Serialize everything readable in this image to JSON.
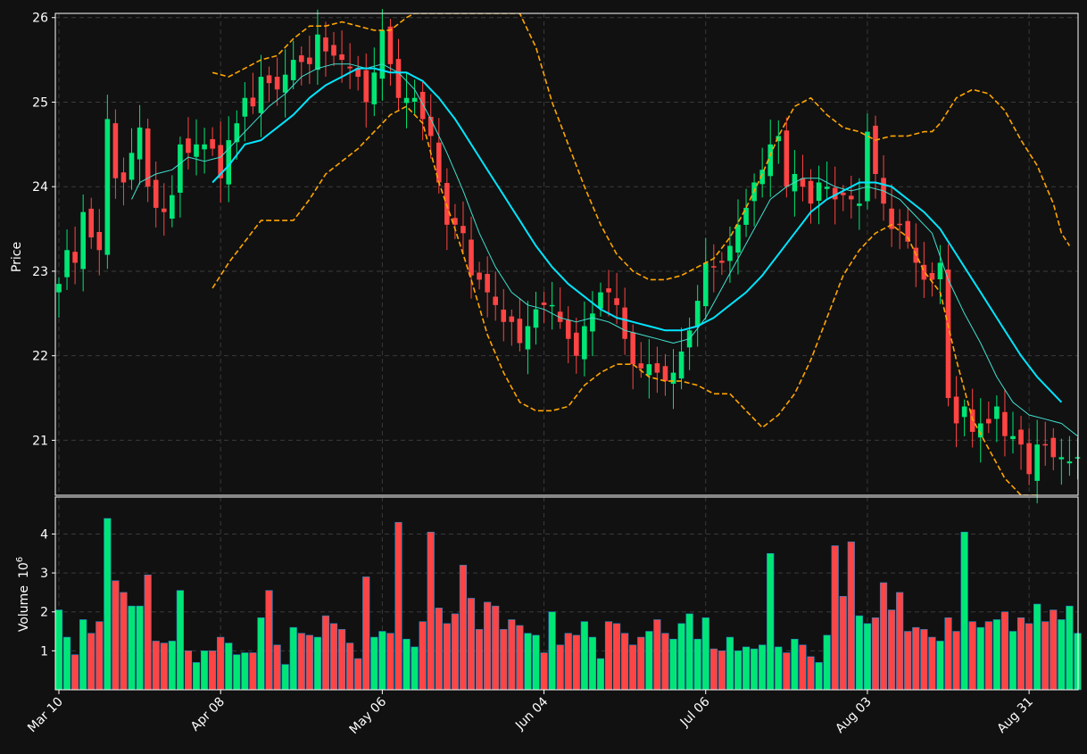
{
  "chart_data": {
    "type": "candlestick",
    "title": "",
    "colors": {
      "background": "#111111",
      "up": "#00e676",
      "down": "#ff4444",
      "ma_fast": "#40e0d0",
      "ma_slow": "#00e5ff",
      "bollinger": "#ffa500",
      "grid": "#3a3a3a",
      "frame": "#ffffff"
    },
    "price_panel": {
      "ylabel": "Price",
      "ylim": [
        20.35,
        26.05
      ],
      "yticks": [
        21,
        22,
        23,
        24,
        25,
        26
      ]
    },
    "volume_panel": {
      "ylabel": "Volume",
      "unit_label": "10",
      "unit_exponent": "6",
      "ylim": [
        0,
        4.95
      ],
      "yticks": [
        1,
        2,
        3,
        4
      ]
    },
    "x_axis": {
      "n_sessions": 127,
      "tick_labels": [
        {
          "label": "Mar 10",
          "index": 0
        },
        {
          "label": "Apr 08",
          "index": 20
        },
        {
          "label": "May 06",
          "index": 40
        },
        {
          "label": "Jun 04",
          "index": 60
        },
        {
          "label": "Jul 06",
          "index": 80
        },
        {
          "label": "Aug 03",
          "index": 100
        },
        {
          "label": "Aug 31",
          "index": 120
        }
      ]
    },
    "ohlc_anchors": [
      [
        0,
        22.85
      ],
      [
        1,
        23.25
      ],
      [
        2,
        23.1
      ],
      [
        3,
        23.7
      ],
      [
        4,
        23.4
      ],
      [
        5,
        23.25
      ],
      [
        6,
        24.8
      ],
      [
        7,
        24.1
      ],
      [
        8,
        24.05
      ],
      [
        9,
        24.4
      ],
      [
        10,
        24.7
      ],
      [
        11,
        24.0
      ],
      [
        12,
        23.75
      ],
      [
        13,
        23.7
      ],
      [
        14,
        23.9
      ],
      [
        15,
        24.5
      ],
      [
        16,
        24.4
      ],
      [
        17,
        24.5
      ],
      [
        18,
        24.5
      ],
      [
        19,
        24.45
      ],
      [
        20,
        24.1
      ],
      [
        21,
        24.55
      ],
      [
        22,
        24.75
      ],
      [
        23,
        25.05
      ],
      [
        24,
        24.95
      ],
      [
        25,
        25.3
      ],
      [
        27,
        25.15
      ],
      [
        29,
        25.5
      ],
      [
        31,
        25.45
      ],
      [
        32,
        25.8
      ],
      [
        33,
        25.6
      ],
      [
        35,
        25.5
      ],
      [
        37,
        25.3
      ],
      [
        38,
        25.0
      ],
      [
        39,
        25.35
      ],
      [
        40,
        25.85
      ],
      [
        41,
        25.45
      ],
      [
        42,
        25.05
      ],
      [
        44,
        25.05
      ],
      [
        45,
        24.8
      ],
      [
        46,
        24.6
      ],
      [
        47,
        24.05
      ],
      [
        48,
        23.55
      ],
      [
        49,
        23.55
      ],
      [
        50,
        23.45
      ],
      [
        51,
        22.95
      ],
      [
        52,
        22.9
      ],
      [
        53,
        22.75
      ],
      [
        54,
        22.6
      ],
      [
        55,
        22.4
      ],
      [
        56,
        22.4
      ],
      [
        57,
        22.15
      ],
      [
        58,
        22.35
      ],
      [
        59,
        22.55
      ],
      [
        60,
        22.6
      ],
      [
        61,
        22.6
      ],
      [
        62,
        22.4
      ],
      [
        63,
        22.2
      ],
      [
        64,
        22.0
      ],
      [
        65,
        22.35
      ],
      [
        66,
        22.5
      ],
      [
        67,
        22.75
      ],
      [
        68,
        22.75
      ],
      [
        69,
        22.6
      ],
      [
        70,
        22.2
      ],
      [
        71,
        21.9
      ],
      [
        72,
        21.85
      ],
      [
        73,
        21.9
      ],
      [
        74,
        21.8
      ],
      [
        75,
        21.7
      ],
      [
        76,
        21.8
      ],
      [
        77,
        22.05
      ],
      [
        78,
        22.3
      ],
      [
        79,
        22.65
      ],
      [
        80,
        23.1
      ],
      [
        81,
        23.05
      ],
      [
        82,
        23.1
      ],
      [
        83,
        23.3
      ],
      [
        84,
        23.55
      ],
      [
        85,
        23.75
      ],
      [
        86,
        24.05
      ],
      [
        87,
        24.2
      ],
      [
        88,
        24.5
      ],
      [
        89,
        24.6
      ],
      [
        90,
        24.0
      ],
      [
        91,
        24.15
      ],
      [
        92,
        24.0
      ],
      [
        93,
        23.8
      ],
      [
        94,
        24.05
      ],
      [
        95,
        24.0
      ],
      [
        96,
        23.85
      ],
      [
        97,
        23.9
      ],
      [
        98,
        23.85
      ],
      [
        99,
        23.8
      ],
      [
        100,
        24.65
      ],
      [
        101,
        24.15
      ],
      [
        102,
        23.8
      ],
      [
        103,
        23.5
      ],
      [
        104,
        23.55
      ],
      [
        105,
        23.35
      ],
      [
        106,
        23.1
      ],
      [
        107,
        22.9
      ],
      [
        108,
        22.9
      ],
      [
        109,
        23.1
      ],
      [
        110,
        21.5
      ],
      [
        111,
        21.2
      ],
      [
        112,
        21.4
      ],
      [
        113,
        21.1
      ],
      [
        114,
        21.2
      ],
      [
        115,
        21.2
      ],
      [
        116,
        21.4
      ],
      [
        117,
        21.05
      ],
      [
        118,
        21.05
      ],
      [
        119,
        20.95
      ],
      [
        120,
        20.6
      ],
      [
        121,
        20.95
      ],
      [
        122,
        20.95
      ],
      [
        123,
        20.8
      ],
      [
        124,
        20.8
      ],
      [
        125,
        20.75
      ],
      [
        126,
        20.8
      ]
    ],
    "ma_fast": [
      [
        9,
        23.85
      ],
      [
        10,
        24.05
      ],
      [
        12,
        24.15
      ],
      [
        14,
        24.2
      ],
      [
        16,
        24.35
      ],
      [
        18,
        24.3
      ],
      [
        20,
        24.35
      ],
      [
        22,
        24.55
      ],
      [
        24,
        24.75
      ],
      [
        26,
        24.95
      ],
      [
        28,
        25.1
      ],
      [
        30,
        25.3
      ],
      [
        32,
        25.4
      ],
      [
        34,
        25.45
      ],
      [
        36,
        25.45
      ],
      [
        38,
        25.4
      ],
      [
        40,
        25.45
      ],
      [
        42,
        25.35
      ],
      [
        44,
        25.15
      ],
      [
        46,
        24.8
      ],
      [
        48,
        24.4
      ],
      [
        50,
        23.95
      ],
      [
        52,
        23.45
      ],
      [
        54,
        23.05
      ],
      [
        56,
        22.75
      ],
      [
        58,
        22.6
      ],
      [
        60,
        22.55
      ],
      [
        62,
        22.45
      ],
      [
        64,
        22.4
      ],
      [
        66,
        22.45
      ],
      [
        68,
        22.4
      ],
      [
        70,
        22.3
      ],
      [
        72,
        22.25
      ],
      [
        74,
        22.2
      ],
      [
        76,
        22.15
      ],
      [
        78,
        22.2
      ],
      [
        80,
        22.45
      ],
      [
        82,
        22.8
      ],
      [
        84,
        23.15
      ],
      [
        86,
        23.5
      ],
      [
        88,
        23.85
      ],
      [
        90,
        24.0
      ],
      [
        92,
        24.1
      ],
      [
        94,
        24.1
      ],
      [
        96,
        24.0
      ],
      [
        98,
        23.95
      ],
      [
        100,
        24.0
      ],
      [
        102,
        23.95
      ],
      [
        104,
        23.85
      ],
      [
        106,
        23.65
      ],
      [
        108,
        23.45
      ],
      [
        110,
        22.9
      ],
      [
        112,
        22.5
      ],
      [
        114,
        22.15
      ],
      [
        116,
        21.75
      ],
      [
        118,
        21.45
      ],
      [
        120,
        21.3
      ],
      [
        122,
        21.25
      ],
      [
        124,
        21.2
      ],
      [
        126,
        21.05
      ]
    ],
    "ma_slow": [
      [
        19,
        24.05
      ],
      [
        21,
        24.25
      ],
      [
        23,
        24.5
      ],
      [
        25,
        24.55
      ],
      [
        27,
        24.7
      ],
      [
        29,
        24.85
      ],
      [
        31,
        25.05
      ],
      [
        33,
        25.2
      ],
      [
        35,
        25.3
      ],
      [
        37,
        25.4
      ],
      [
        39,
        25.4
      ],
      [
        41,
        25.35
      ],
      [
        43,
        25.35
      ],
      [
        45,
        25.25
      ],
      [
        47,
        25.05
      ],
      [
        49,
        24.8
      ],
      [
        51,
        24.5
      ],
      [
        53,
        24.2
      ],
      [
        55,
        23.9
      ],
      [
        57,
        23.6
      ],
      [
        59,
        23.3
      ],
      [
        61,
        23.05
      ],
      [
        63,
        22.85
      ],
      [
        65,
        22.7
      ],
      [
        67,
        22.55
      ],
      [
        69,
        22.45
      ],
      [
        71,
        22.4
      ],
      [
        73,
        22.35
      ],
      [
        75,
        22.3
      ],
      [
        77,
        22.3
      ],
      [
        79,
        22.35
      ],
      [
        81,
        22.45
      ],
      [
        83,
        22.6
      ],
      [
        85,
        22.75
      ],
      [
        87,
        22.95
      ],
      [
        89,
        23.2
      ],
      [
        91,
        23.45
      ],
      [
        93,
        23.7
      ],
      [
        95,
        23.85
      ],
      [
        97,
        23.95
      ],
      [
        99,
        24.05
      ],
      [
        101,
        24.05
      ],
      [
        103,
        24.0
      ],
      [
        105,
        23.85
      ],
      [
        107,
        23.7
      ],
      [
        109,
        23.5
      ],
      [
        111,
        23.2
      ],
      [
        113,
        22.9
      ],
      [
        115,
        22.6
      ],
      [
        117,
        22.3
      ],
      [
        119,
        22.0
      ],
      [
        121,
        21.75
      ],
      [
        123,
        21.55
      ],
      [
        124,
        21.45
      ]
    ],
    "bollinger_upper": [
      [
        19,
        25.35
      ],
      [
        21,
        25.3
      ],
      [
        23,
        25.4
      ],
      [
        25,
        25.5
      ],
      [
        27,
        25.55
      ],
      [
        29,
        25.75
      ],
      [
        31,
        25.9
      ],
      [
        33,
        25.9
      ],
      [
        35,
        25.95
      ],
      [
        37,
        25.9
      ],
      [
        39,
        25.85
      ],
      [
        41,
        25.85
      ],
      [
        43,
        26.0
      ],
      [
        45,
        26.45
      ],
      [
        47,
        26.65
      ],
      [
        49,
        26.75
      ],
      [
        51,
        26.8
      ],
      [
        53,
        26.6
      ],
      [
        55,
        26.35
      ],
      [
        57,
        26.05
      ],
      [
        59,
        25.65
      ],
      [
        61,
        25.0
      ],
      [
        63,
        24.5
      ],
      [
        65,
        24.0
      ],
      [
        67,
        23.55
      ],
      [
        69,
        23.2
      ],
      [
        71,
        23.0
      ],
      [
        73,
        22.9
      ],
      [
        75,
        22.9
      ],
      [
        77,
        22.95
      ],
      [
        79,
        23.05
      ],
      [
        81,
        23.15
      ],
      [
        83,
        23.4
      ],
      [
        85,
        23.75
      ],
      [
        87,
        24.15
      ],
      [
        89,
        24.6
      ],
      [
        91,
        24.95
      ],
      [
        93,
        25.05
      ],
      [
        95,
        24.85
      ],
      [
        97,
        24.7
      ],
      [
        99,
        24.65
      ],
      [
        101,
        24.55
      ],
      [
        103,
        24.6
      ],
      [
        105,
        24.6
      ],
      [
        107,
        24.65
      ],
      [
        108,
        24.65
      ],
      [
        109,
        24.75
      ],
      [
        111,
        25.05
      ],
      [
        113,
        25.15
      ],
      [
        115,
        25.1
      ],
      [
        117,
        24.9
      ],
      [
        119,
        24.55
      ],
      [
        121,
        24.25
      ],
      [
        123,
        23.8
      ],
      [
        124,
        23.45
      ],
      [
        125,
        23.3
      ]
    ],
    "bollinger_lower": [
      [
        19,
        22.8
      ],
      [
        21,
        23.1
      ],
      [
        23,
        23.35
      ],
      [
        25,
        23.6
      ],
      [
        27,
        23.6
      ],
      [
        29,
        23.6
      ],
      [
        31,
        23.85
      ],
      [
        33,
        24.15
      ],
      [
        35,
        24.3
      ],
      [
        37,
        24.45
      ],
      [
        39,
        24.65
      ],
      [
        41,
        24.85
      ],
      [
        43,
        24.95
      ],
      [
        45,
        24.75
      ],
      [
        47,
        24.05
      ],
      [
        49,
        23.5
      ],
      [
        51,
        22.9
      ],
      [
        53,
        22.25
      ],
      [
        55,
        21.8
      ],
      [
        57,
        21.45
      ],
      [
        59,
        21.35
      ],
      [
        61,
        21.35
      ],
      [
        63,
        21.4
      ],
      [
        65,
        21.65
      ],
      [
        67,
        21.8
      ],
      [
        69,
        21.9
      ],
      [
        71,
        21.9
      ],
      [
        73,
        21.75
      ],
      [
        75,
        21.7
      ],
      [
        77,
        21.7
      ],
      [
        79,
        21.65
      ],
      [
        81,
        21.55
      ],
      [
        83,
        21.55
      ],
      [
        85,
        21.35
      ],
      [
        87,
        21.15
      ],
      [
        89,
        21.3
      ],
      [
        91,
        21.55
      ],
      [
        93,
        21.95
      ],
      [
        95,
        22.45
      ],
      [
        97,
        22.95
      ],
      [
        99,
        23.25
      ],
      [
        101,
        23.45
      ],
      [
        103,
        23.55
      ],
      [
        105,
        23.4
      ],
      [
        107,
        23.0
      ],
      [
        109,
        22.75
      ],
      [
        111,
        21.95
      ],
      [
        113,
        21.25
      ],
      [
        115,
        20.9
      ],
      [
        117,
        20.55
      ],
      [
        119,
        20.35
      ],
      [
        121,
        20.2
      ]
    ],
    "volume": [
      2.05,
      1.35,
      0.9,
      1.8,
      1.45,
      1.75,
      4.4,
      2.8,
      2.5,
      2.15,
      2.15,
      2.95,
      1.25,
      1.2,
      1.25,
      2.55,
      1.0,
      0.7,
      1.0,
      1.0,
      1.35,
      1.2,
      0.9,
      0.95,
      0.95,
      1.85,
      2.55,
      1.15,
      0.65,
      1.6,
      1.45,
      1.4,
      1.35,
      1.9,
      1.7,
      1.55,
      1.2,
      0.8,
      2.9,
      1.35,
      1.5,
      1.45,
      4.3,
      1.3,
      1.1,
      1.75,
      4.05,
      2.1,
      1.7,
      1.95,
      3.2,
      2.35,
      1.55,
      2.25,
      2.15,
      1.55,
      1.8,
      1.65,
      1.45,
      1.4,
      0.95,
      2.0,
      1.15,
      1.45,
      1.4,
      1.75,
      1.35,
      0.8,
      1.75,
      1.7,
      1.45,
      1.15,
      1.35,
      1.5,
      1.8,
      1.45,
      1.3,
      1.7,
      1.95,
      1.3,
      1.85,
      1.05,
      1.0,
      1.35,
      1.0,
      1.1,
      1.05,
      1.15,
      3.5,
      1.1,
      0.95,
      1.3,
      1.15,
      0.85,
      0.7,
      1.4,
      3.7,
      2.4,
      3.8,
      1.9,
      1.7,
      1.85,
      2.75,
      2.05,
      2.5,
      1.5,
      1.6,
      1.55,
      1.35,
      1.25,
      1.85,
      1.5,
      4.05,
      1.75,
      1.6,
      1.75,
      1.8,
      2.0,
      1.5,
      1.85,
      1.7,
      2.2,
      1.75,
      2.05,
      1.8,
      2.15,
      1.45
    ]
  }
}
